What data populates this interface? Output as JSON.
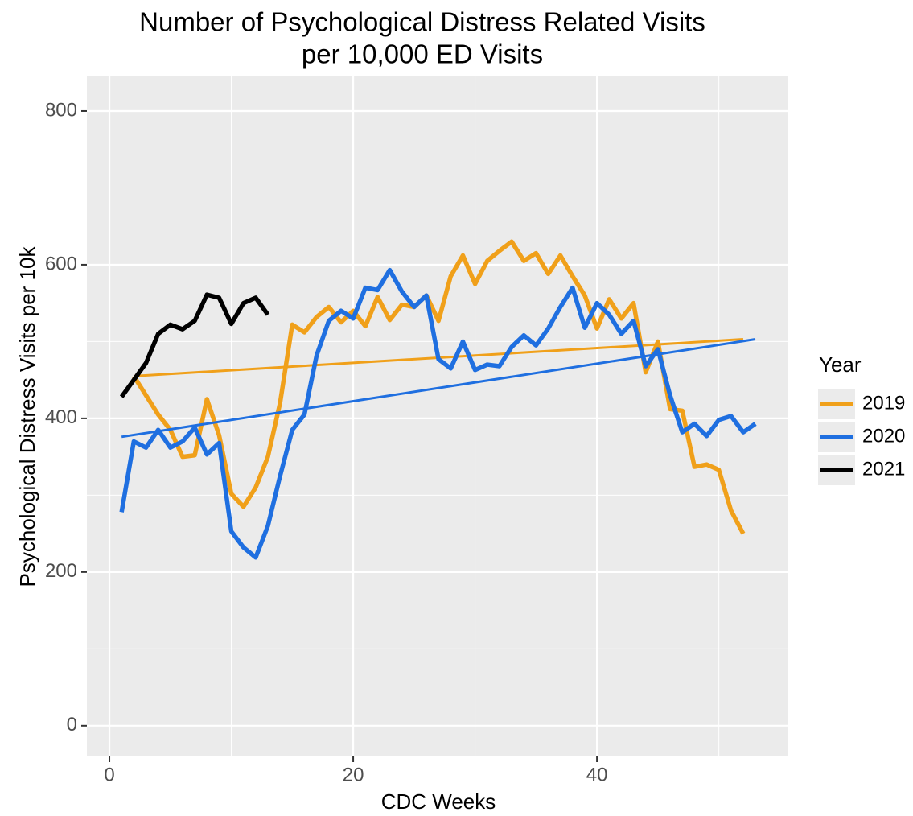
{
  "chart_data": {
    "type": "line",
    "title": [
      "Number of Psychological Distress Related Visits",
      "per 10,000 ED Visits"
    ],
    "x_label": "CDC Weeks",
    "y_label": "Psychological Distress Visits per 10k",
    "legend_title": "Year",
    "legend_position": "right",
    "xlim": [
      -1.85,
      55.7
    ],
    "ylim": [
      -40,
      845
    ],
    "xticks": [
      0,
      20,
      40
    ],
    "yticks": [
      0,
      200,
      400,
      600,
      800
    ],
    "minor_xticks": [
      10,
      30,
      50
    ],
    "minor_yticks": [
      100,
      300,
      500,
      700
    ],
    "grid": true,
    "series": [
      {
        "name": "2019",
        "color": "#F0A01A",
        "x": [
          2,
          3,
          4,
          5,
          6,
          7,
          8,
          9,
          10,
          11,
          12,
          13,
          14,
          15,
          16,
          17,
          18,
          19,
          20,
          21,
          22,
          23,
          24,
          25,
          26,
          27,
          28,
          29,
          30,
          31,
          32,
          33,
          34,
          35,
          36,
          37,
          38,
          39,
          40,
          41,
          42,
          43,
          44,
          45,
          46,
          47,
          48,
          49,
          50,
          51,
          52
        ],
        "values": [
          455,
          430,
          405,
          385,
          350,
          352,
          425,
          378,
          302,
          285,
          310,
          350,
          420,
          522,
          512,
          532,
          545,
          525,
          540,
          520,
          558,
          528,
          548,
          545,
          560,
          527,
          585,
          612,
          575,
          605,
          618,
          630,
          605,
          615,
          588,
          612,
          585,
          560,
          517,
          555,
          530,
          550,
          460,
          500,
          412,
          410,
          337,
          340,
          333,
          280,
          250
        ],
        "trend_x": [
          2,
          52
        ],
        "trend_values": [
          455,
          503
        ]
      },
      {
        "name": "2020",
        "color": "#1F6FE0",
        "x": [
          1,
          2,
          3,
          4,
          5,
          6,
          7,
          8,
          9,
          10,
          11,
          12,
          13,
          14,
          15,
          16,
          17,
          18,
          19,
          20,
          21,
          22,
          23,
          24,
          25,
          26,
          27,
          28,
          29,
          30,
          31,
          32,
          33,
          34,
          35,
          36,
          37,
          38,
          39,
          40,
          41,
          42,
          43,
          44,
          45,
          46,
          47,
          48,
          49,
          50,
          51,
          52,
          53
        ],
        "values": [
          278,
          370,
          362,
          385,
          362,
          370,
          388,
          353,
          368,
          253,
          232,
          219,
          260,
          325,
          385,
          405,
          482,
          527,
          540,
          530,
          570,
          567,
          593,
          565,
          545,
          560,
          477,
          465,
          500,
          463,
          470,
          468,
          493,
          508,
          495,
          517,
          545,
          570,
          518,
          550,
          535,
          510,
          527,
          468,
          490,
          430,
          382,
          393,
          377,
          398,
          403,
          382,
          393
        ],
        "trend_x": [
          1,
          53
        ],
        "trend_values": [
          376,
          503
        ]
      },
      {
        "name": "2021",
        "color": "#000000",
        "x": [
          1,
          2,
          3,
          4,
          5,
          6,
          7,
          8,
          9,
          10,
          11,
          12,
          13
        ],
        "values": [
          428,
          450,
          472,
          510,
          522,
          516,
          527,
          561,
          557,
          523,
          550,
          557,
          535
        ]
      }
    ]
  }
}
